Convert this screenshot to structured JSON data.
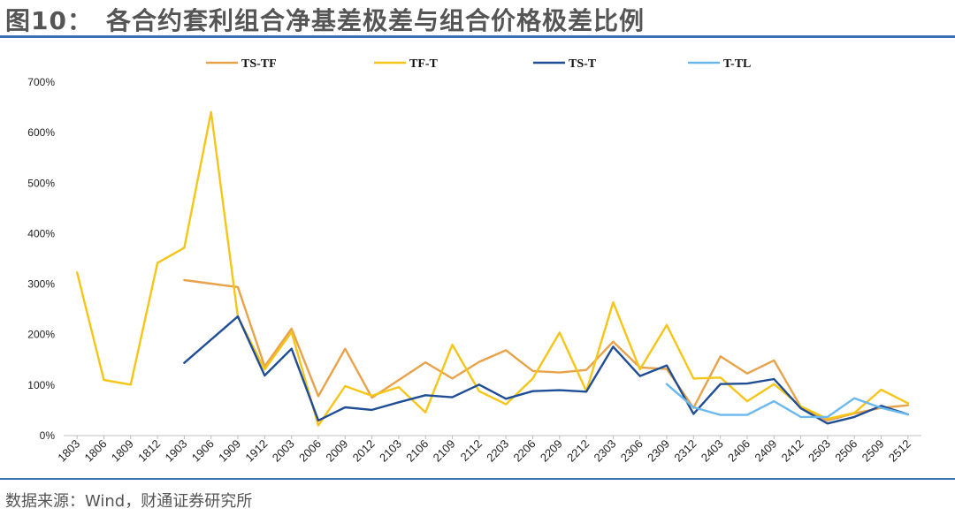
{
  "header": {
    "title": "图10：　各合约套利组合净基差极差与组合价格极差比例"
  },
  "footer": {
    "source": "数据来源：Wind，财通证券研究所"
  },
  "chart_data": {
    "type": "line",
    "categories": [
      "1803",
      "1806",
      "1809",
      "1812",
      "1903",
      "1906",
      "1909",
      "1912",
      "2003",
      "2006",
      "2009",
      "2012",
      "2103",
      "2106",
      "2109",
      "2112",
      "2203",
      "2206",
      "2209",
      "2212",
      "2303",
      "2306",
      "2309",
      "2312",
      "2403",
      "2406",
      "2409",
      "2412",
      "2503",
      "2506",
      "2509",
      "2512"
    ],
    "x_tick_labels": [
      "1803",
      "1806",
      "1809",
      "1812",
      "1903",
      "1906",
      "1909",
      "1912",
      "2003",
      "2006",
      "2009",
      "2012",
      "2103",
      "2106",
      "2109",
      "2112",
      "2203",
      "2206",
      "2209",
      "2212",
      "2303",
      "2306",
      "2309",
      "2312",
      "2403",
      "2406",
      "2409",
      "2412",
      "2503",
      "2506",
      "2509",
      "2512"
    ],
    "y_tick_labels": [
      "0%",
      "100%",
      "200%",
      "300%",
      "400%",
      "500%",
      "600%",
      "700%"
    ],
    "ylim": [
      0,
      700
    ],
    "y_ticks": [
      0,
      100,
      200,
      300,
      400,
      500,
      600,
      700
    ],
    "grid": false,
    "legend_position": "top",
    "series": [
      {
        "name": "TS-TF",
        "color": "#e8a24a",
        "values": [
          null,
          null,
          null,
          null,
          308,
          301,
          294,
          137,
          212,
          78,
          172,
          75,
          110,
          145,
          113,
          146,
          169,
          128,
          125,
          130,
          186,
          135,
          132,
          55,
          157,
          123,
          149,
          57,
          30,
          44,
          55,
          60
        ]
      },
      {
        "name": "TF-T",
        "color": "#f5c518",
        "values": [
          323,
          110,
          101,
          342,
          372,
          641,
          235,
          131,
          205,
          20,
          98,
          79,
          96,
          46,
          180,
          88,
          62,
          113,
          204,
          88,
          264,
          131,
          219,
          113,
          115,
          68,
          102,
          58,
          33,
          45,
          91,
          64
        ]
      },
      {
        "name": "TS-T",
        "color": "#1f4e96",
        "values": [
          null,
          null,
          null,
          null,
          144,
          190,
          236,
          119,
          172,
          30,
          56,
          51,
          66,
          80,
          76,
          101,
          73,
          88,
          90,
          87,
          176,
          118,
          139,
          43,
          102,
          103,
          112,
          54,
          24,
          37,
          59,
          42
        ]
      },
      {
        "name": "T-TL",
        "color": "#69b8ee",
        "values": [
          null,
          null,
          null,
          null,
          null,
          null,
          null,
          null,
          null,
          null,
          null,
          null,
          null,
          null,
          null,
          null,
          null,
          null,
          null,
          null,
          null,
          null,
          102,
          56,
          41,
          41,
          68,
          37,
          37,
          74,
          55,
          42
        ]
      }
    ]
  }
}
